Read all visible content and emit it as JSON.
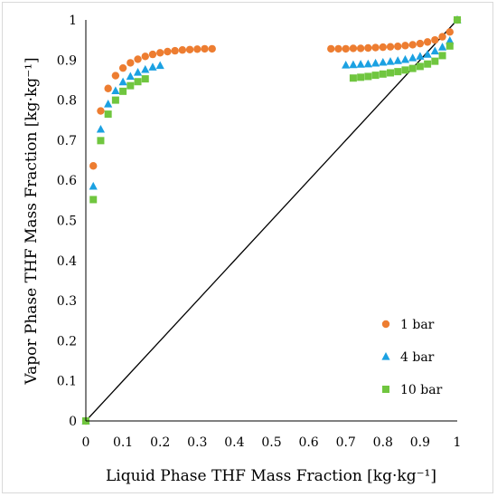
{
  "chart_data": {
    "type": "scatter",
    "xlabel": "Liquid Phase THF Mass Fraction [kg·kg⁻¹]",
    "ylabel": "Vapor Phase THF Mass Fraction [kg·kg⁻¹]",
    "xlim": [
      0,
      1
    ],
    "ylim": [
      0,
      1
    ],
    "x_ticks": [
      "0",
      "0.1",
      "0.2",
      "0.3",
      "0.4",
      "0.5",
      "0.6",
      "0.7",
      "0.8",
      "0.9",
      "1"
    ],
    "y_ticks": [
      "0",
      "0.1",
      "0.2",
      "0.3",
      "0.4",
      "0.5",
      "0.6",
      "0.7",
      "0.8",
      "0.9",
      "1"
    ],
    "grid": false,
    "legend_position": "bottom-right",
    "reference_line": {
      "from": [
        0,
        0
      ],
      "to": [
        1,
        1
      ],
      "color": "#000000"
    },
    "series": [
      {
        "name": "1 bar",
        "marker": "circle",
        "color": "#ED7D31",
        "points": [
          [
            0,
            0
          ],
          [
            0.02,
            0.636
          ],
          [
            0.04,
            0.773
          ],
          [
            0.06,
            0.829
          ],
          [
            0.08,
            0.861
          ],
          [
            0.1,
            0.88
          ],
          [
            0.12,
            0.893
          ],
          [
            0.14,
            0.902
          ],
          [
            0.16,
            0.909
          ],
          [
            0.18,
            0.914
          ],
          [
            0.2,
            0.918
          ],
          [
            0.22,
            0.921
          ],
          [
            0.24,
            0.923
          ],
          [
            0.26,
            0.925
          ],
          [
            0.28,
            0.926
          ],
          [
            0.3,
            0.927
          ],
          [
            0.32,
            0.928
          ],
          [
            0.34,
            0.928
          ],
          [
            0.66,
            0.928
          ],
          [
            0.68,
            0.928
          ],
          [
            0.7,
            0.928
          ],
          [
            0.72,
            0.929
          ],
          [
            0.74,
            0.929
          ],
          [
            0.76,
            0.93
          ],
          [
            0.78,
            0.931
          ],
          [
            0.8,
            0.932
          ],
          [
            0.82,
            0.933
          ],
          [
            0.84,
            0.934
          ],
          [
            0.86,
            0.936
          ],
          [
            0.88,
            0.938
          ],
          [
            0.9,
            0.941
          ],
          [
            0.92,
            0.945
          ],
          [
            0.94,
            0.95
          ],
          [
            0.96,
            0.958
          ],
          [
            0.98,
            0.97
          ],
          [
            1,
            1
          ]
        ]
      },
      {
        "name": "4 bar",
        "marker": "triangle",
        "color": "#1BA1E2",
        "points": [
          [
            0,
            0
          ],
          [
            0.02,
            0.585
          ],
          [
            0.04,
            0.727
          ],
          [
            0.06,
            0.79
          ],
          [
            0.08,
            0.823
          ],
          [
            0.1,
            0.845
          ],
          [
            0.12,
            0.859
          ],
          [
            0.14,
            0.869
          ],
          [
            0.16,
            0.876
          ],
          [
            0.18,
            0.882
          ],
          [
            0.2,
            0.886
          ],
          [
            0.7,
            0.887
          ],
          [
            0.72,
            0.888
          ],
          [
            0.74,
            0.889
          ],
          [
            0.76,
            0.89
          ],
          [
            0.78,
            0.892
          ],
          [
            0.8,
            0.894
          ],
          [
            0.82,
            0.896
          ],
          [
            0.84,
            0.898
          ],
          [
            0.86,
            0.901
          ],
          [
            0.88,
            0.905
          ],
          [
            0.9,
            0.909
          ],
          [
            0.92,
            0.914
          ],
          [
            0.94,
            0.922
          ],
          [
            0.96,
            0.932
          ],
          [
            0.98,
            0.948
          ],
          [
            1,
            1
          ]
        ]
      },
      {
        "name": "10 bar",
        "marker": "square",
        "color": "#70C63F",
        "points": [
          [
            0,
            0
          ],
          [
            0.02,
            0.552
          ],
          [
            0.04,
            0.699
          ],
          [
            0.06,
            0.765
          ],
          [
            0.08,
            0.8
          ],
          [
            0.1,
            0.822
          ],
          [
            0.12,
            0.836
          ],
          [
            0.14,
            0.846
          ],
          [
            0.16,
            0.853
          ],
          [
            0.72,
            0.855
          ],
          [
            0.74,
            0.857
          ],
          [
            0.76,
            0.859
          ],
          [
            0.78,
            0.862
          ],
          [
            0.8,
            0.865
          ],
          [
            0.82,
            0.868
          ],
          [
            0.84,
            0.871
          ],
          [
            0.86,
            0.875
          ],
          [
            0.88,
            0.879
          ],
          [
            0.9,
            0.884
          ],
          [
            0.92,
            0.89
          ],
          [
            0.94,
            0.897
          ],
          [
            0.96,
            0.911
          ],
          [
            0.98,
            0.935
          ],
          [
            1,
            1
          ]
        ]
      }
    ]
  }
}
